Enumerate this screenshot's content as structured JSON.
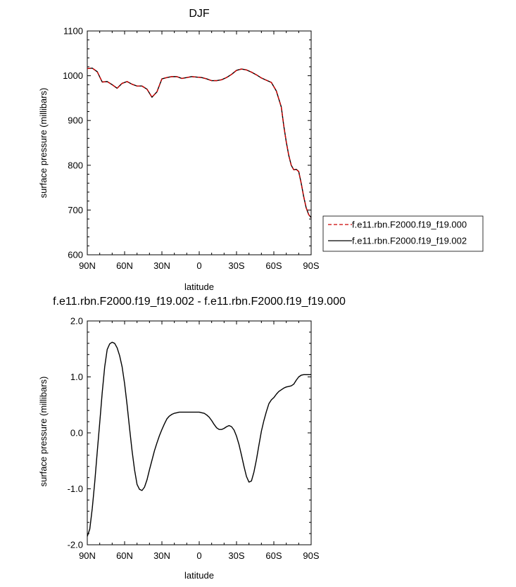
{
  "chart_data": [
    {
      "type": "line",
      "title": "DJF",
      "xlabel": "latitude",
      "ylabel": "surface pressure (millibars)",
      "xticks": [
        {
          "value": 90,
          "label": "90N"
        },
        {
          "value": 60,
          "label": "60N"
        },
        {
          "value": 30,
          "label": "30N"
        },
        {
          "value": 0,
          "label": "0"
        },
        {
          "value": -30,
          "label": "30S"
        },
        {
          "value": -60,
          "label": "60S"
        },
        {
          "value": -90,
          "label": "90S"
        }
      ],
      "yticks": [
        {
          "value": 600,
          "label": "600"
        },
        {
          "value": 700,
          "label": "700"
        },
        {
          "value": 800,
          "label": "800"
        },
        {
          "value": 900,
          "label": "900"
        },
        {
          "value": 1000,
          "label": "1000"
        },
        {
          "value": 1100,
          "label": "1100"
        }
      ],
      "xlim": [
        90,
        -90
      ],
      "ylim": [
        600,
        1100
      ],
      "grid": false,
      "legend_position": "outside right",
      "x": [
        90,
        86,
        82,
        78,
        74,
        70,
        66,
        62,
        58,
        54,
        50,
        46,
        42,
        38,
        34,
        30,
        26,
        22,
        18,
        14,
        10,
        6,
        2,
        -2,
        -6,
        -10,
        -14,
        -18,
        -22,
        -26,
        -30,
        -34,
        -38,
        -42,
        -46,
        -50,
        -54,
        -58,
        -62,
        -66,
        -68,
        -70,
        -72,
        -74,
        -76,
        -78,
        -80,
        -82,
        -84,
        -86,
        -88,
        -90
      ],
      "series": [
        {
          "name": "f.e11.rbn.F2000.f19_f19.000",
          "color": "#cc0000",
          "dash": "dashed",
          "values": [
            1016,
            1017,
            1009,
            986,
            987,
            980,
            972,
            983,
            987,
            981,
            977,
            977,
            970,
            952,
            964,
            993,
            996,
            998,
            998,
            994,
            996,
            998,
            997,
            996,
            993,
            989,
            989,
            991,
            996,
            1003,
            1012,
            1015,
            1013,
            1008,
            1002,
            995,
            990,
            985,
            966,
            930,
            888,
            852,
            822,
            800,
            790,
            791,
            786,
            760,
            730,
            705,
            690,
            683
          ]
        },
        {
          "name": "f.e11.rbn.F2000.f19_f19.002",
          "color": "#000000",
          "dash": "solid",
          "values": [
            1016,
            1017,
            1009,
            986,
            987,
            980,
            972,
            983,
            987,
            981,
            977,
            977,
            970,
            952,
            964,
            993,
            996,
            998,
            998,
            994,
            996,
            998,
            997,
            996,
            993,
            989,
            989,
            991,
            996,
            1003,
            1012,
            1015,
            1013,
            1008,
            1002,
            995,
            990,
            985,
            966,
            930,
            888,
            852,
            822,
            800,
            790,
            791,
            786,
            760,
            730,
            705,
            690,
            683
          ]
        }
      ]
    },
    {
      "type": "line",
      "title": "f.e11.rbn.F2000.f19_f19.002 - f.e11.rbn.F2000.f19_f19.000",
      "xlabel": "latitude",
      "ylabel": "surface pressure (millibars)",
      "xticks": [
        {
          "value": 90,
          "label": "90N"
        },
        {
          "value": 60,
          "label": "60N"
        },
        {
          "value": 30,
          "label": "30N"
        },
        {
          "value": 0,
          "label": "0"
        },
        {
          "value": -30,
          "label": "30S"
        },
        {
          "value": -60,
          "label": "60S"
        },
        {
          "value": -90,
          "label": "90S"
        }
      ],
      "yticks": [
        {
          "value": -2.0,
          "label": "-2.0"
        },
        {
          "value": -1.0,
          "label": "-1.0"
        },
        {
          "value": 0.0,
          "label": "0.0"
        },
        {
          "value": 1.0,
          "label": "1.0"
        },
        {
          "value": 2.0,
          "label": "2.0"
        }
      ],
      "xlim": [
        90,
        -90
      ],
      "ylim": [
        -2.0,
        2.0
      ],
      "grid": false,
      "x": [
        90,
        88,
        86,
        84,
        82,
        80,
        78,
        76,
        74,
        72,
        70,
        68,
        66,
        64,
        62,
        60,
        58,
        56,
        54,
        52,
        50,
        48,
        46,
        44,
        42,
        40,
        38,
        36,
        34,
        32,
        30,
        28,
        26,
        24,
        22,
        20,
        18,
        16,
        14,
        12,
        10,
        8,
        6,
        4,
        2,
        0,
        -2,
        -4,
        -6,
        -8,
        -10,
        -12,
        -14,
        -16,
        -18,
        -20,
        -22,
        -24,
        -26,
        -28,
        -30,
        -32,
        -34,
        -36,
        -38,
        -40,
        -42,
        -44,
        -46,
        -48,
        -50,
        -52,
        -54,
        -56,
        -58,
        -60,
        -62,
        -64,
        -66,
        -68,
        -70,
        -72,
        -74,
        -76,
        -78,
        -80,
        -82,
        -84,
        -86,
        -88,
        -90
      ],
      "series": [
        {
          "name": "",
          "color": "#000000",
          "dash": "solid",
          "values": [
            -1.85,
            -1.72,
            -1.35,
            -0.88,
            -0.34,
            0.18,
            0.72,
            1.18,
            1.49,
            1.59,
            1.62,
            1.6,
            1.52,
            1.38,
            1.18,
            0.88,
            0.5,
            0.08,
            -0.32,
            -0.66,
            -0.92,
            -1.01,
            -1.03,
            -0.97,
            -0.84,
            -0.66,
            -0.49,
            -0.32,
            -0.18,
            -0.05,
            0.06,
            0.16,
            0.25,
            0.3,
            0.33,
            0.35,
            0.36,
            0.37,
            0.37,
            0.37,
            0.37,
            0.37,
            0.37,
            0.37,
            0.37,
            0.37,
            0.36,
            0.35,
            0.32,
            0.28,
            0.22,
            0.15,
            0.09,
            0.06,
            0.06,
            0.08,
            0.11,
            0.13,
            0.11,
            0.05,
            -0.06,
            -0.21,
            -0.4,
            -0.6,
            -0.78,
            -0.88,
            -0.86,
            -0.7,
            -0.48,
            -0.22,
            0.03,
            0.22,
            0.38,
            0.52,
            0.59,
            0.63,
            0.69,
            0.74,
            0.77,
            0.8,
            0.82,
            0.83,
            0.84,
            0.87,
            0.94,
            1.0,
            1.03,
            1.04,
            1.04,
            1.04,
            1.04
          ]
        }
      ]
    }
  ]
}
